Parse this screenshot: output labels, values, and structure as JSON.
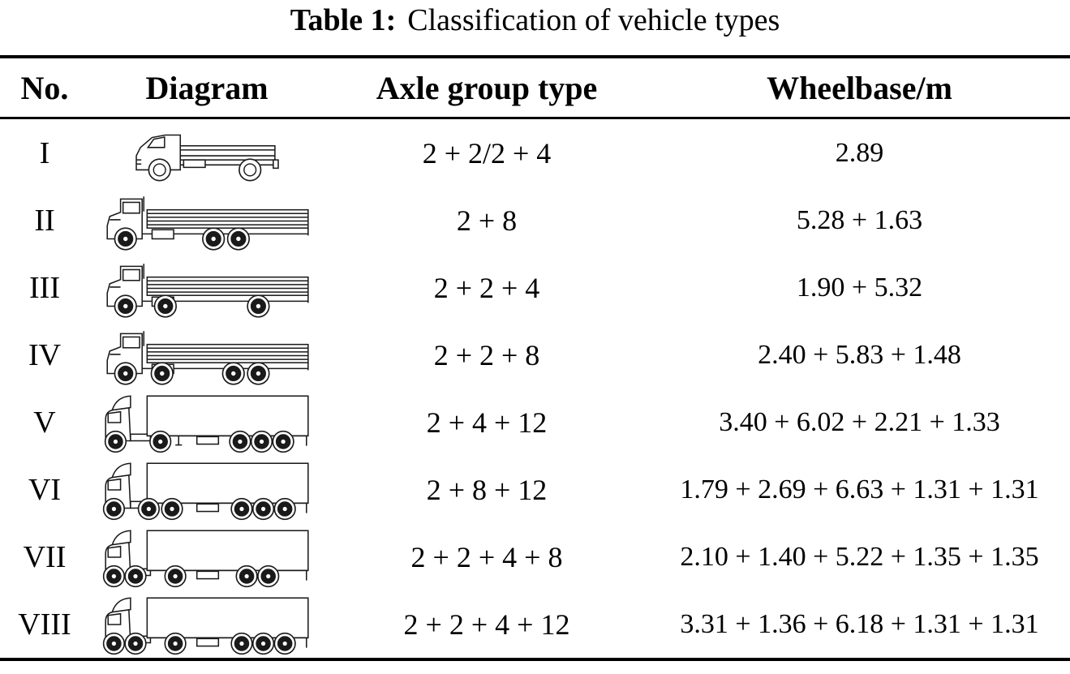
{
  "title": {
    "label": "Table 1:",
    "text": "Classification of vehicle types"
  },
  "table": {
    "headers": [
      "No.",
      "Diagram",
      "Axle group type",
      "Wheelbase/m"
    ],
    "rows": [
      {
        "no": "I",
        "axle_group_type": "2 + 2/2 + 4",
        "wheelbase_m": "2.89",
        "diagram": {
          "name": "light-truck-two-axle-diagram",
          "style": "light",
          "wheels": [
            73,
            182
          ]
        }
      },
      {
        "no": "II",
        "axle_group_type": "2 + 8",
        "wheelbase_m": "5.28 + 1.63",
        "diagram": {
          "name": "flatbed-truck-three-axle-diagram",
          "style": "flatbed",
          "wheels": [
            32,
            138,
            168
          ]
        }
      },
      {
        "no": "III",
        "axle_group_type": "2 + 2 + 4",
        "wheelbase_m": "1.90 + 5.32",
        "diagram": {
          "name": "flatbed-truck-three-axle-diagram",
          "style": "flatbed",
          "wheels": [
            32,
            80,
            192
          ]
        }
      },
      {
        "no": "IV",
        "axle_group_type": "2 + 2 + 8",
        "wheelbase_m": "2.40 + 5.83 + 1.48",
        "diagram": {
          "name": "flatbed-truck-four-axle-diagram",
          "style": "flatbed",
          "wheels": [
            32,
            76,
            162,
            192
          ]
        }
      },
      {
        "no": "V",
        "axle_group_type": "2 + 4 + 12",
        "wheelbase_m": "3.40 + 6.02 + 2.21 + 1.33",
        "diagram": {
          "name": "semi-trailer-truck-five-axle-diagram",
          "style": "semi",
          "tractor_wheels": [
            20,
            74
          ],
          "trailer_wheels": [
            170,
            196,
            222
          ]
        }
      },
      {
        "no": "VI",
        "axle_group_type": "2 + 8 + 12",
        "wheelbase_m": "1.79 + 2.69 + 6.63 + 1.31 + 1.31",
        "diagram": {
          "name": "semi-trailer-truck-six-axle-diagram",
          "style": "semi",
          "tractor_wheels": [
            18,
            60,
            88
          ],
          "trailer_wheels": [
            172,
            198,
            224
          ]
        }
      },
      {
        "no": "VII",
        "axle_group_type": "2 + 2 + 4 + 8",
        "wheelbase_m": "2.10 + 1.40 + 5.22 + 1.35 + 1.35",
        "diagram": {
          "name": "semi-trailer-truck-five-axle-diagram",
          "style": "semi",
          "tractor_wheels": [
            18,
            44,
            92
          ],
          "trailer_wheels": [
            178,
            204
          ]
        }
      },
      {
        "no": "VIII",
        "axle_group_type": "2 + 2 + 4 + 12",
        "wheelbase_m": "3.31 + 1.36 + 6.18 + 1.31 + 1.31",
        "diagram": {
          "name": "semi-trailer-truck-six-axle-diagram",
          "style": "semi",
          "tractor_wheels": [
            18,
            44,
            92
          ],
          "trailer_wheels": [
            172,
            198,
            224
          ]
        }
      }
    ]
  },
  "colors": {
    "text": "#000000",
    "background": "#ffffff",
    "rule": "#000000",
    "line_art": "#1a1a1a"
  }
}
